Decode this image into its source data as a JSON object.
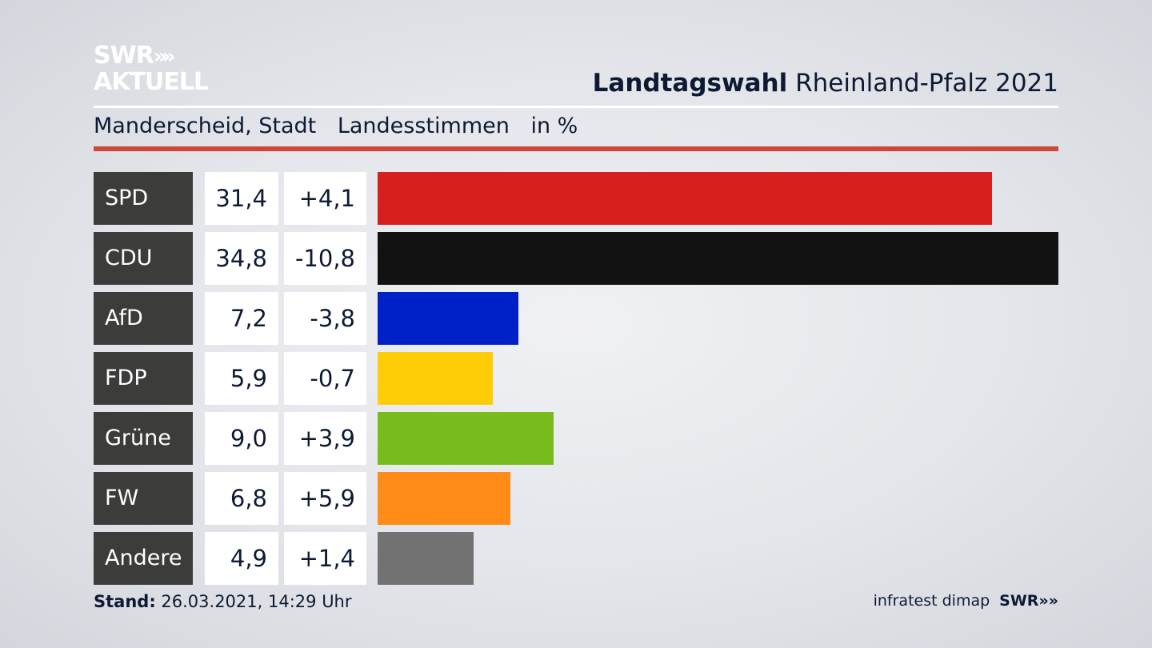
{
  "brand": {
    "logo_line1": "SWR",
    "logo_chevrons": "»",
    "logo_line2": "AKTUELL"
  },
  "header": {
    "title_bold": "Landtagswahl",
    "title_rest": "Rheinland-Pfalz 2021"
  },
  "subtitle": {
    "place": "Manderscheid, Stadt",
    "measure": "Landesstimmen",
    "unit": "in %"
  },
  "colors": {
    "accent_rule": "#d0473a"
  },
  "chart_data": {
    "type": "bar",
    "categories": [
      "SPD",
      "CDU",
      "AfD",
      "FDP",
      "Grüne",
      "FW",
      "Andere"
    ],
    "values": [
      31.4,
      34.8,
      7.2,
      5.9,
      9.0,
      6.8,
      4.9
    ],
    "values_label": [
      "31,4",
      "34,8",
      "7,2",
      "5,9",
      "9,0",
      "6,8",
      "4,9"
    ],
    "diffs": [
      4.1,
      -10.8,
      -3.8,
      -0.7,
      3.9,
      5.9,
      1.4
    ],
    "diffs_label": [
      "+4,1",
      "-10,8",
      "-3,8",
      "-0,7",
      "+3,9",
      "+5,9",
      "+1,4"
    ],
    "colors": [
      "#d71f20",
      "#121212",
      "#0021c8",
      "#ffcc08",
      "#78bb1c",
      "#ff8c19",
      "#727272"
    ],
    "xlim": [
      0,
      34.8
    ],
    "orientation": "horizontal"
  },
  "footer": {
    "stand_label": "Stand:",
    "stand_value": "26.03.2021, 14:29 Uhr",
    "source": "infratest dimap",
    "source_brand": "SWR",
    "source_brand_chevrons": "»"
  }
}
